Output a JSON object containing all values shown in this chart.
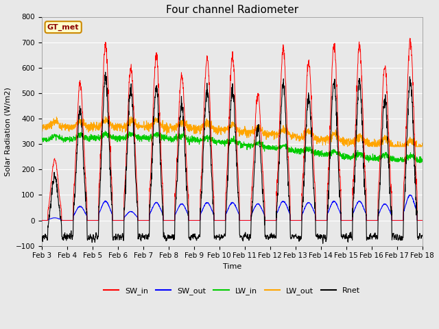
{
  "title": "Four channel Radiometer",
  "xlabel": "Time",
  "ylabel": "Solar Radiation (W/m2)",
  "ylim": [
    -100,
    800
  ],
  "yticks": [
    -100,
    0,
    100,
    200,
    300,
    400,
    500,
    600,
    700,
    800
  ],
  "xtick_labels": [
    "Feb 3",
    "Feb 4",
    "Feb 5",
    "Feb 6",
    "Feb 7",
    "Feb 8",
    "Feb 9",
    "Feb 10",
    "Feb 11",
    "Feb 12",
    "Feb 13",
    "Feb 14",
    "Feb 15",
    "Feb 16",
    "Feb 17",
    "Feb 18"
  ],
  "colors": {
    "SW_in": "#ff0000",
    "SW_out": "#0000ff",
    "LW_in": "#00cc00",
    "LW_out": "#ffa500",
    "Rnet": "#000000"
  },
  "legend_label": "GT_met",
  "legend_bg": "#ffffcc",
  "legend_border": "#cc8800",
  "fig_bg": "#e8e8e8",
  "plot_bg": "#e8e8e8",
  "title_fontsize": 11,
  "axis_fontsize": 8,
  "tick_fontsize": 7.5
}
